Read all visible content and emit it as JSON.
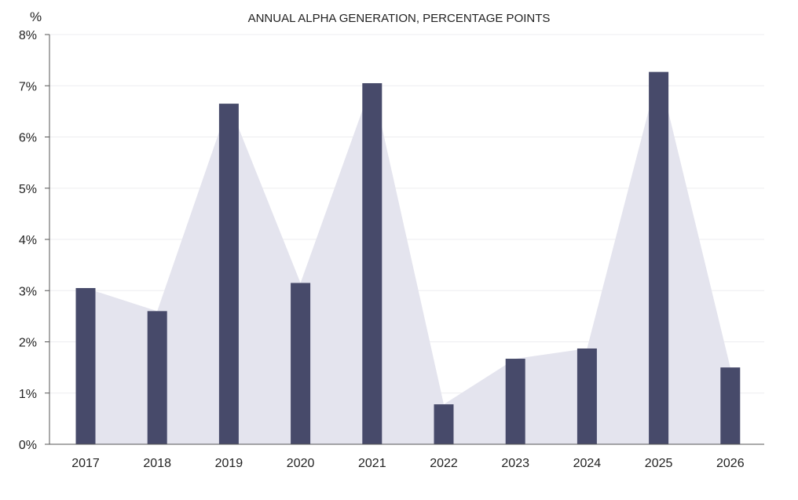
{
  "chart_data": {
    "type": "bar",
    "title": "ANNUAL ALPHA GENERATION, PERCENTAGE POINTS",
    "ylabel": "%",
    "xlabel": "",
    "categories": [
      "2017",
      "2018",
      "2019",
      "2020",
      "2021",
      "2022",
      "2023",
      "2024",
      "2025",
      "2026"
    ],
    "values": [
      3.05,
      2.6,
      6.65,
      3.15,
      7.05,
      0.78,
      1.67,
      1.87,
      7.27,
      1.5
    ],
    "ylim": [
      0,
      8
    ],
    "yticks": [
      "0%",
      "1%",
      "2%",
      "3%",
      "4%",
      "5%",
      "6%",
      "7%",
      "8%"
    ],
    "grid": true,
    "legend": "none",
    "bar_color": "#474a6a",
    "area_color": "#e4e4ee"
  }
}
